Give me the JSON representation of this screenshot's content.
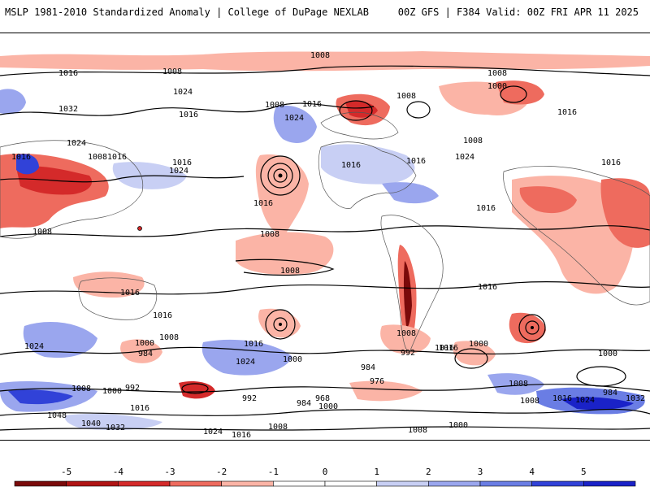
{
  "header": {
    "title_left": "MSLP 1981-2010 Standardized Anomaly | College of DuPage NEXLAB",
    "title_right": "00Z GFS | F384 Valid: 00Z FRI APR 11 2025"
  },
  "map": {
    "isobar_labels": [
      "1008",
      "1016",
      "1008",
      "1024",
      "1032",
      "1016",
      "1024",
      "1008",
      "1016",
      "1016",
      "1024",
      "1008",
      "1024",
      "1016",
      "1016",
      "1008",
      "1008",
      "1016",
      "1024",
      "1008",
      "1016",
      "1016",
      "1008",
      "1000",
      "1016",
      "1008",
      "1016",
      "1016",
      "1016",
      "1008",
      "1016",
      "1016",
      "1024",
      "1000",
      "984",
      "1008",
      "1016",
      "1024",
      "1000",
      "984",
      "976",
      "992",
      "1016",
      "1000",
      "1000",
      "984",
      "992",
      "968",
      "984",
      "1000",
      "1008",
      "1016",
      "1000",
      "1008",
      "1016",
      "1024",
      "1032",
      "992",
      "1008",
      "1048",
      "1040",
      "1032",
      "1024",
      "1016",
      "1008",
      "1000",
      "1008",
      "1016",
      "1008"
    ],
    "colors": {
      "strong_negative": "#7a0a0a",
      "negative_3": "#d42a2a",
      "negative_2": "#ee6b5e",
      "negative_1": "#fbb4a6",
      "positive_1": "#c8cff4",
      "positive_2": "#9aa6ee",
      "positive_3": "#6a7de4",
      "positive_4": "#3142d8"
    }
  },
  "colorbar": {
    "ticks": [
      "-5",
      "-4",
      "-3",
      "-2",
      "-1",
      "0",
      "1",
      "2",
      "3",
      "4",
      "5"
    ],
    "colors": [
      "#7a0a0a",
      "#b01414",
      "#d42a2a",
      "#ee6b5e",
      "#fbb4a6",
      "#ffffff",
      "#ffffff",
      "#c8cff4",
      "#9aa6ee",
      "#6a7de4",
      "#3142d8",
      "#1a22c8"
    ]
  }
}
